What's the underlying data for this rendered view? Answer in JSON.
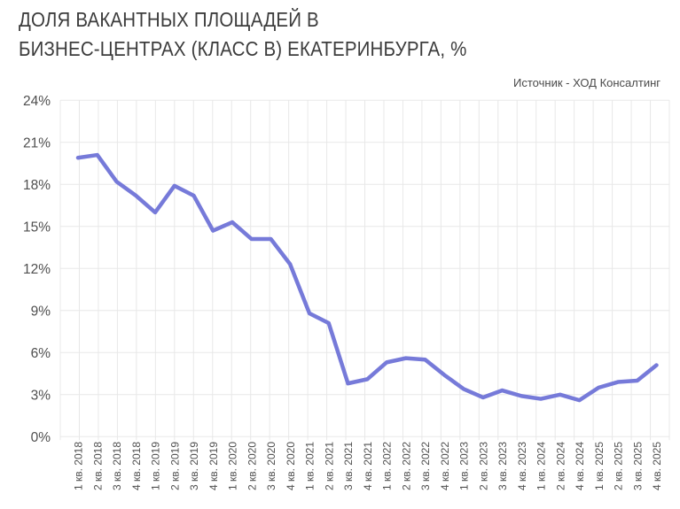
{
  "header": {
    "title_line1": "ДОЛЯ ВАКАНТНЫХ ПЛОЩАДЕЙ В",
    "title_line2": "БИЗНЕС-ЦЕНТРАХ (КЛАСС B) ЕКАТЕРИНБУРГА, %",
    "source": "Источник - ХОД Консалтинг"
  },
  "colors": {
    "line": "#767ad9",
    "grid": "#e8e8e8",
    "title_text": "#3c3c3c",
    "axis_text": "#4f4f4f",
    "background": "#ffffff"
  },
  "chart_data": {
    "type": "line",
    "title": "ДОЛЯ ВАКАНТНЫХ ПЛОЩАДЕЙ В БИЗНЕС-ЦЕНТРАХ (КЛАСС B) ЕКАТЕРИНБУРГА, %",
    "source": "Источник - ХОД Консалтинг",
    "xlabel": "",
    "ylabel": "",
    "ylim": [
      0,
      24
    ],
    "ytick_step": 3,
    "ytick_labels": [
      "0%",
      "3%",
      "6%",
      "9%",
      "12%",
      "15%",
      "18%",
      "21%",
      "24%"
    ],
    "grid": true,
    "legend": false,
    "categories": [
      "1 кв. 2018",
      "2 кв. 2018",
      "3 кв. 2018",
      "4 кв. 2018",
      "1 кв. 2019",
      "2 кв. 2019",
      "3 кв. 2019",
      "4 кв. 2019",
      "1 кв. 2020",
      "2 кв. 2020",
      "3 кв. 2020",
      "4 кв. 2020",
      "1 кв. 2021",
      "2 кв. 2021",
      "3 кв. 2021",
      "4 кв. 2021",
      "1 кв. 2022",
      "2 кв. 2022",
      "3 кв. 2022",
      "4 кв. 2022",
      "1 кв. 2023",
      "2 кв. 2023",
      "3 кв. 2023",
      "4 кв. 2023",
      "1 кв. 2024",
      "2 кв. 2024",
      "4 кв. 2024",
      "1 кв. 2025",
      "2 кв. 2025",
      "3 кв. 2025",
      "4 кв. 2025"
    ],
    "values": [
      19.9,
      20.1,
      18.2,
      17.2,
      16.0,
      17.9,
      17.2,
      14.7,
      15.3,
      14.1,
      14.1,
      12.3,
      8.8,
      8.1,
      3.8,
      4.1,
      5.3,
      5.6,
      5.5,
      4.4,
      3.4,
      2.8,
      3.3,
      2.9,
      2.7,
      3.0,
      2.6,
      3.5,
      3.9,
      4.0,
      5.1
    ]
  }
}
